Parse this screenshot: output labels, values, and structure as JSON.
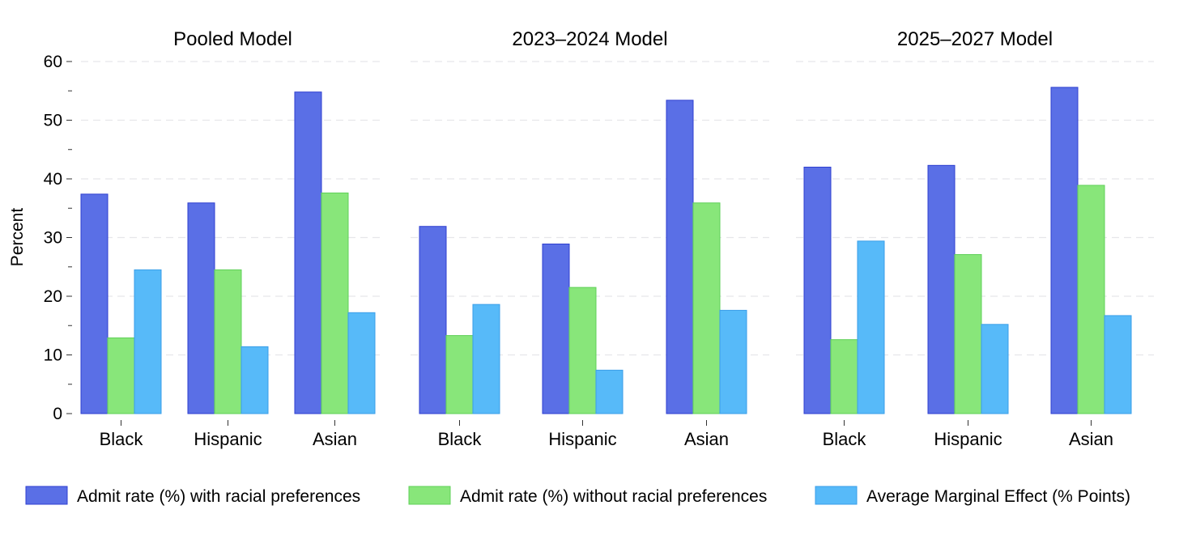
{
  "chart_data": {
    "type": "bar",
    "ylabel": "Percent",
    "ylim": [
      0,
      60
    ],
    "yticks": [
      0,
      10,
      20,
      30,
      40,
      50,
      60
    ],
    "grid": true,
    "legend_position": "bottom",
    "categories": [
      "Black",
      "Hispanic",
      "Asian"
    ],
    "series": [
      {
        "name": "Admit rate (%) with racial preferences",
        "color": "#5a6fe6",
        "stroke": "#2f3fd0"
      },
      {
        "name": "Admit rate (%) without racial preferences",
        "color": "#88e67a",
        "stroke": "#5fd058"
      },
      {
        "name": "Average Marginal Effect (% Points)",
        "color": "#57baf9",
        "stroke": "#3a9ee8"
      }
    ],
    "panels": [
      {
        "title": "Pooled Model",
        "values": [
          [
            37.4,
            35.9,
            54.8
          ],
          [
            12.9,
            24.5,
            37.6
          ],
          [
            24.5,
            11.4,
            17.2
          ]
        ]
      },
      {
        "title": "2023–2024 Model",
        "values": [
          [
            31.9,
            28.9,
            53.4
          ],
          [
            13.3,
            21.5,
            35.9
          ],
          [
            18.6,
            7.4,
            17.6
          ]
        ]
      },
      {
        "title": "2025–2027 Model",
        "values": [
          [
            42.0,
            42.3,
            55.6
          ],
          [
            12.6,
            27.1,
            38.9
          ],
          [
            29.4,
            15.2,
            16.7
          ]
        ]
      }
    ]
  }
}
